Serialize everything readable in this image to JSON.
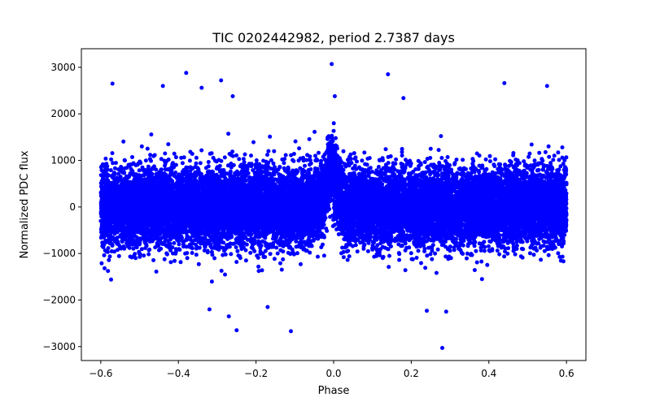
{
  "chart_data": {
    "type": "scatter",
    "title": "TIC 0202442982, period 2.7387 days",
    "xlabel": "Phase",
    "ylabel": "Normalized PDC flux",
    "xlim": [
      -0.65,
      0.65
    ],
    "ylim": [
      -3300,
      3400
    ],
    "xticks": [
      -0.6,
      -0.4,
      -0.2,
      0.0,
      0.2,
      0.4,
      0.6
    ],
    "xtick_labels": [
      "−0.6",
      "−0.4",
      "−0.2",
      "0.0",
      "0.2",
      "0.4",
      "0.6"
    ],
    "yticks": [
      -3000,
      -2000,
      -1000,
      0,
      1000,
      2000,
      3000
    ],
    "ytick_labels": [
      "−3000",
      "−2000",
      "−1000",
      "0",
      "1000",
      "2000",
      "3000"
    ],
    "marker_color": "#0000ff",
    "grid": false,
    "series": [
      {
        "name": "PDC flux",
        "phase_range": [
          -0.6,
          0.6
        ],
        "baseline": 0,
        "scatter_std": 420,
        "approx_points": 16000,
        "feature_near_zero_phase": {
          "phase_center": -0.005,
          "width": 0.02,
          "peak_flux": 700
        },
        "outliers": [
          {
            "x": -0.57,
            "y": 2650
          },
          {
            "x": -0.44,
            "y": 2600
          },
          {
            "x": -0.38,
            "y": 2880
          },
          {
            "x": -0.34,
            "y": 2560
          },
          {
            "x": -0.29,
            "y": 2720
          },
          {
            "x": -0.26,
            "y": 2380
          },
          {
            "x": -0.005,
            "y": 3070
          },
          {
            "x": 0.003,
            "y": 2380
          },
          {
            "x": 0.14,
            "y": 2850
          },
          {
            "x": 0.18,
            "y": 2340
          },
          {
            "x": 0.44,
            "y": 2660
          },
          {
            "x": 0.55,
            "y": 2600
          },
          {
            "x": -0.25,
            "y": -2650
          },
          {
            "x": -0.32,
            "y": -2200
          },
          {
            "x": -0.27,
            "y": -2350
          },
          {
            "x": -0.11,
            "y": -2670
          },
          {
            "x": -0.17,
            "y": -2150
          },
          {
            "x": 0.28,
            "y": -3030
          },
          {
            "x": 0.24,
            "y": -2230
          },
          {
            "x": 0.29,
            "y": -2250
          }
        ]
      }
    ]
  }
}
